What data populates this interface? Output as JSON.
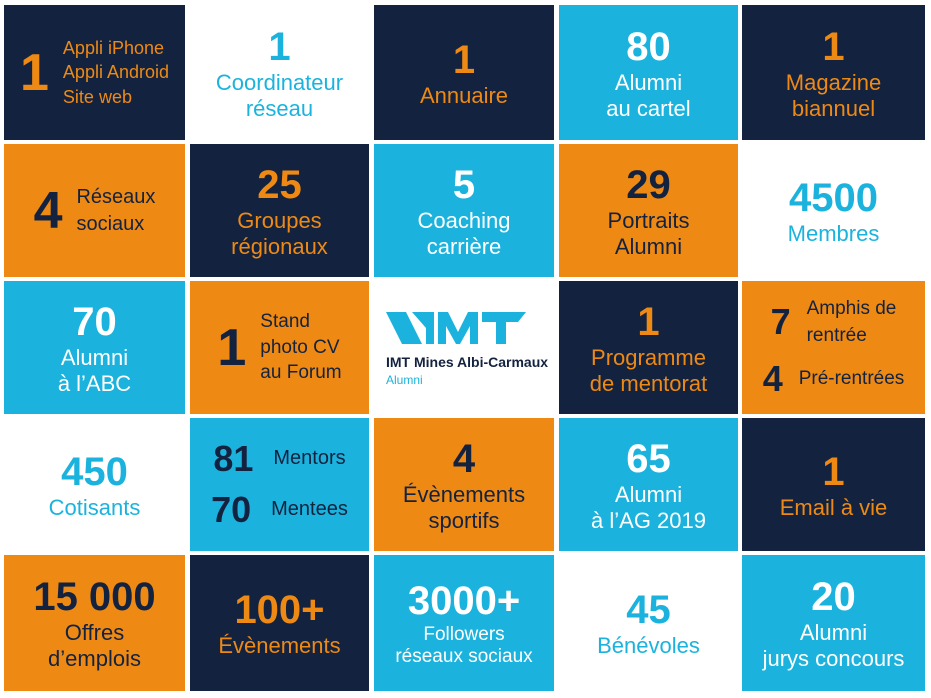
{
  "colors": {
    "navy": "#13223f",
    "orange": "#ee8a14",
    "cyan": "#1bb3dd",
    "white": "#ffffff"
  },
  "tiles": {
    "apps": {
      "num": "1",
      "lines": [
        "Appli iPhone",
        "Appli Android",
        "Site web"
      ]
    },
    "coordinateur": {
      "num": "1",
      "line1": "Coordinateur",
      "line2": "réseau"
    },
    "annuaire": {
      "num": "1",
      "line1": "Annuaire"
    },
    "cartel": {
      "num": "80",
      "line1": "Alumni",
      "line2": "au cartel"
    },
    "magazine": {
      "num": "1",
      "line1": "Magazine",
      "line2": "biannuel"
    },
    "reseaux": {
      "num": "4",
      "line1": "Réseaux",
      "line2": "sociaux"
    },
    "groupes": {
      "num": "25",
      "line1": "Groupes",
      "line2": "régionaux"
    },
    "coaching": {
      "num": "5",
      "line1": "Coaching",
      "line2": "carrière"
    },
    "portraits": {
      "num": "29",
      "line1": "Portraits",
      "line2": "Alumni"
    },
    "membres": {
      "num": "4500",
      "line1": "Membres"
    },
    "abc": {
      "num": "70",
      "line1": "Alumni",
      "line2": "à l’ABC"
    },
    "stand": {
      "num": "1",
      "line1": "Stand",
      "line2": "photo CV",
      "line3": "au Forum"
    },
    "logo": {
      "name": "IMT Mines Albi-Carmaux",
      "sub": "Alumni"
    },
    "mentorat": {
      "num": "1",
      "line1": "Programme",
      "line2": "de mentorat"
    },
    "amphis": {
      "num1": "7",
      "label1a": "Amphis de",
      "label1b": "rentrée",
      "num2": "4",
      "label2": "Pré-rentrées"
    },
    "cotisants": {
      "num": "450",
      "line1": "Cotisants"
    },
    "mentors": {
      "num1": "81",
      "label1": "Mentors",
      "num2": "70",
      "label2": "Mentees"
    },
    "sportifs": {
      "num": "4",
      "line1": "Évènements",
      "line2": "sportifs"
    },
    "ag": {
      "num": "65",
      "line1": "Alumni",
      "line2": "à l’AG 2019"
    },
    "email": {
      "num": "1",
      "line1": "Email à vie"
    },
    "offres": {
      "num": "15 000",
      "line1": "Offres",
      "line2": "d’emplois"
    },
    "evenements": {
      "num": "100+",
      "line1": "Évènements"
    },
    "followers": {
      "num": "3000+",
      "line1": "Followers",
      "line2": "réseaux sociaux"
    },
    "benevoles": {
      "num": "45",
      "line1": "Bénévoles"
    },
    "jurys": {
      "num": "20",
      "line1": "Alumni",
      "line2": "jurys concours"
    }
  }
}
